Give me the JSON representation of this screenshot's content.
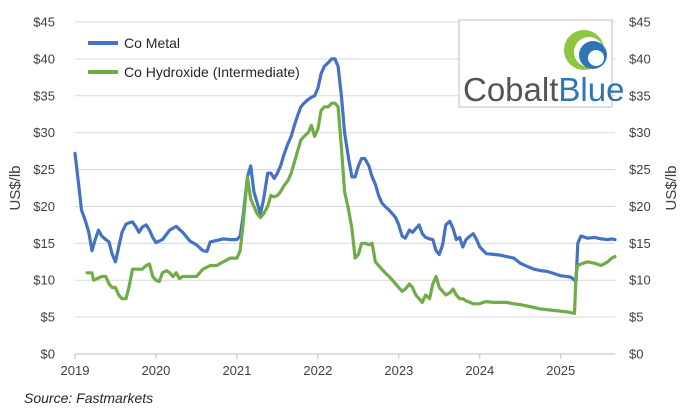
{
  "chart_data": {
    "type": "line",
    "y_left_label": "US$/lb",
    "y_right_label": "US$/lb",
    "ylim": [
      0,
      45
    ],
    "y_ticks": [
      "$0",
      "$5",
      "$10",
      "$15",
      "$20",
      "$25",
      "$30",
      "$35",
      "$40",
      "$45"
    ],
    "x_ticks": [
      "2019",
      "2020",
      "2021",
      "2022",
      "2023",
      "2024",
      "2025"
    ],
    "xlim": [
      2019.0,
      2025.67
    ],
    "grid": "horizontal",
    "legend_position": "top-left",
    "source": "Source:  Fastmarkets",
    "logo": {
      "word1": "Cobalt",
      "word2": "Blue",
      "color1": "#555555",
      "color2": "#2E75B6"
    },
    "series": [
      {
        "name": "Co Metal",
        "color": "#4472C4",
        "x": [
          2019.0,
          2019.04,
          2019.08,
          2019.13,
          2019.17,
          2019.21,
          2019.25,
          2019.29,
          2019.33,
          2019.38,
          2019.42,
          2019.46,
          2019.5,
          2019.54,
          2019.58,
          2019.63,
          2019.67,
          2019.71,
          2019.75,
          2019.79,
          2019.83,
          2019.88,
          2019.92,
          2019.96,
          2020.0,
          2020.08,
          2020.17,
          2020.25,
          2020.33,
          2020.42,
          2020.5,
          2020.58,
          2020.63,
          2020.67,
          2020.75,
          2020.83,
          2020.92,
          2021.0,
          2021.04,
          2021.08,
          2021.13,
          2021.17,
          2021.21,
          2021.25,
          2021.29,
          2021.33,
          2021.38,
          2021.42,
          2021.46,
          2021.5,
          2021.54,
          2021.58,
          2021.63,
          2021.67,
          2021.71,
          2021.75,
          2021.79,
          2021.83,
          2021.88,
          2021.92,
          2021.96,
          2022.0,
          2022.04,
          2022.08,
          2022.13,
          2022.17,
          2022.21,
          2022.25,
          2022.29,
          2022.33,
          2022.38,
          2022.42,
          2022.46,
          2022.5,
          2022.54,
          2022.58,
          2022.63,
          2022.67,
          2022.71,
          2022.75,
          2022.79,
          2022.83,
          2022.88,
          2022.92,
          2022.96,
          2023.0,
          2023.04,
          2023.08,
          2023.13,
          2023.17,
          2023.21,
          2023.25,
          2023.29,
          2023.33,
          2023.38,
          2023.42,
          2023.46,
          2023.5,
          2023.54,
          2023.58,
          2023.63,
          2023.67,
          2023.71,
          2023.75,
          2023.79,
          2023.83,
          2023.88,
          2023.92,
          2023.96,
          2024.0,
          2024.08,
          2024.17,
          2024.25,
          2024.33,
          2024.42,
          2024.5,
          2024.58,
          2024.67,
          2024.75,
          2024.83,
          2024.92,
          2025.0,
          2025.08,
          2025.13,
          2025.17,
          2025.19,
          2025.21,
          2025.25,
          2025.33,
          2025.42,
          2025.5,
          2025.58,
          2025.63,
          2025.67
        ],
        "y": [
          27.2,
          23.5,
          19.5,
          18.0,
          16.5,
          14.0,
          15.5,
          16.8,
          16.0,
          15.5,
          15.2,
          13.5,
          12.5,
          14.5,
          16.5,
          17.6,
          17.8,
          17.9,
          17.3,
          16.5,
          17.2,
          17.5,
          16.8,
          15.8,
          15.1,
          15.5,
          16.8,
          17.3,
          16.5,
          15.3,
          14.8,
          14.0,
          13.9,
          15.2,
          15.4,
          15.6,
          15.5,
          15.5,
          16.0,
          19.0,
          24.0,
          25.5,
          22.0,
          20.5,
          19.0,
          21.0,
          24.5,
          24.5,
          23.8,
          24.5,
          25.5,
          27.0,
          28.5,
          29.5,
          31.0,
          32.3,
          33.5,
          34.0,
          34.5,
          34.8,
          35.0,
          36.0,
          38.0,
          39.0,
          39.5,
          40.0,
          40.0,
          39.0,
          35.0,
          30.0,
          26.5,
          24.0,
          24.0,
          25.5,
          26.5,
          26.5,
          25.5,
          24.0,
          23.0,
          21.5,
          20.5,
          20.0,
          19.5,
          19.0,
          18.5,
          17.5,
          16.0,
          15.7,
          16.8,
          16.5,
          17.0,
          17.5,
          16.3,
          15.8,
          15.6,
          15.5,
          14.0,
          13.5,
          14.8,
          17.5,
          18.0,
          17.0,
          15.5,
          15.8,
          14.5,
          15.5,
          16.0,
          16.3,
          15.5,
          14.5,
          13.6,
          13.5,
          13.4,
          13.2,
          13.0,
          12.3,
          11.9,
          11.5,
          11.3,
          11.2,
          10.9,
          10.6,
          10.5,
          10.4,
          10.0,
          9.9,
          15.0,
          16.0,
          15.7,
          15.8,
          15.6,
          15.5,
          15.6,
          15.5
        ]
      },
      {
        "name": "Co Hydroxide (Intermediate)",
        "color": "#70AD47",
        "x": [
          2019.15,
          2019.21,
          2019.23,
          2019.29,
          2019.33,
          2019.38,
          2019.42,
          2019.46,
          2019.5,
          2019.54,
          2019.58,
          2019.63,
          2019.67,
          2019.71,
          2019.75,
          2019.79,
          2019.83,
          2019.88,
          2019.92,
          2019.96,
          2020.0,
          2020.04,
          2020.08,
          2020.13,
          2020.17,
          2020.21,
          2020.25,
          2020.29,
          2020.33,
          2020.38,
          2020.42,
          2020.5,
          2020.58,
          2020.67,
          2020.75,
          2020.83,
          2020.92,
          2021.0,
          2021.04,
          2021.08,
          2021.13,
          2021.17,
          2021.21,
          2021.25,
          2021.29,
          2021.33,
          2021.38,
          2021.42,
          2021.46,
          2021.5,
          2021.54,
          2021.58,
          2021.63,
          2021.67,
          2021.71,
          2021.75,
          2021.79,
          2021.83,
          2021.88,
          2021.92,
          2021.96,
          2022.0,
          2022.04,
          2022.08,
          2022.13,
          2022.17,
          2022.21,
          2022.25,
          2022.29,
          2022.33,
          2022.38,
          2022.42,
          2022.46,
          2022.5,
          2022.54,
          2022.58,
          2022.63,
          2022.67,
          2022.71,
          2022.75,
          2022.79,
          2022.83,
          2022.88,
          2022.92,
          2022.96,
          2023.0,
          2023.04,
          2023.08,
          2023.13,
          2023.17,
          2023.21,
          2023.25,
          2023.29,
          2023.33,
          2023.38,
          2023.42,
          2023.46,
          2023.5,
          2023.54,
          2023.58,
          2023.63,
          2023.67,
          2023.71,
          2023.75,
          2023.79,
          2023.83,
          2023.88,
          2023.92,
          2023.96,
          2024.0,
          2024.04,
          2024.08,
          2024.17,
          2024.25,
          2024.33,
          2024.42,
          2024.5,
          2024.58,
          2024.67,
          2024.75,
          2024.83,
          2024.92,
          2025.0,
          2025.08,
          2025.13,
          2025.17,
          2025.19,
          2025.21,
          2025.25,
          2025.33,
          2025.42,
          2025.5,
          2025.58,
          2025.63,
          2025.67
        ],
        "y": [
          11.0,
          11.0,
          10.0,
          10.3,
          10.5,
          10.5,
          9.5,
          9.0,
          9.0,
          8.0,
          7.5,
          7.5,
          9.2,
          11.5,
          11.5,
          11.5,
          11.5,
          12.0,
          12.2,
          10.5,
          10.0,
          9.8,
          11.0,
          11.3,
          11.0,
          10.5,
          11.0,
          10.2,
          10.5,
          10.5,
          10.5,
          10.5,
          11.5,
          12.0,
          12.0,
          12.5,
          13.0,
          13.0,
          14.0,
          18.0,
          24.0,
          21.0,
          20.0,
          19.0,
          18.5,
          19.0,
          20.0,
          21.5,
          21.3,
          21.5,
          22.0,
          22.8,
          23.5,
          24.5,
          26.0,
          27.5,
          29.0,
          29.5,
          30.0,
          31.0,
          29.5,
          30.5,
          33.0,
          33.5,
          33.5,
          34.0,
          34.0,
          33.5,
          28.0,
          22.0,
          19.5,
          17.0,
          13.0,
          13.5,
          15.0,
          15.0,
          14.8,
          15.0,
          12.5,
          12.0,
          11.5,
          11.0,
          10.5,
          10.0,
          9.5,
          9.0,
          8.5,
          8.8,
          9.5,
          9.0,
          8.0,
          7.5,
          7.0,
          8.0,
          7.5,
          9.5,
          10.5,
          9.0,
          8.5,
          8.0,
          8.3,
          8.8,
          8.0,
          7.5,
          7.5,
          7.2,
          7.0,
          6.8,
          6.8,
          6.8,
          7.0,
          7.1,
          7.0,
          7.0,
          7.0,
          6.8,
          6.7,
          6.5,
          6.3,
          6.1,
          6.0,
          5.9,
          5.8,
          5.7,
          5.6,
          5.5,
          11.0,
          12.0,
          12.2,
          12.5,
          12.3,
          12.0,
          12.5,
          13.0,
          13.2
        ]
      }
    ]
  }
}
